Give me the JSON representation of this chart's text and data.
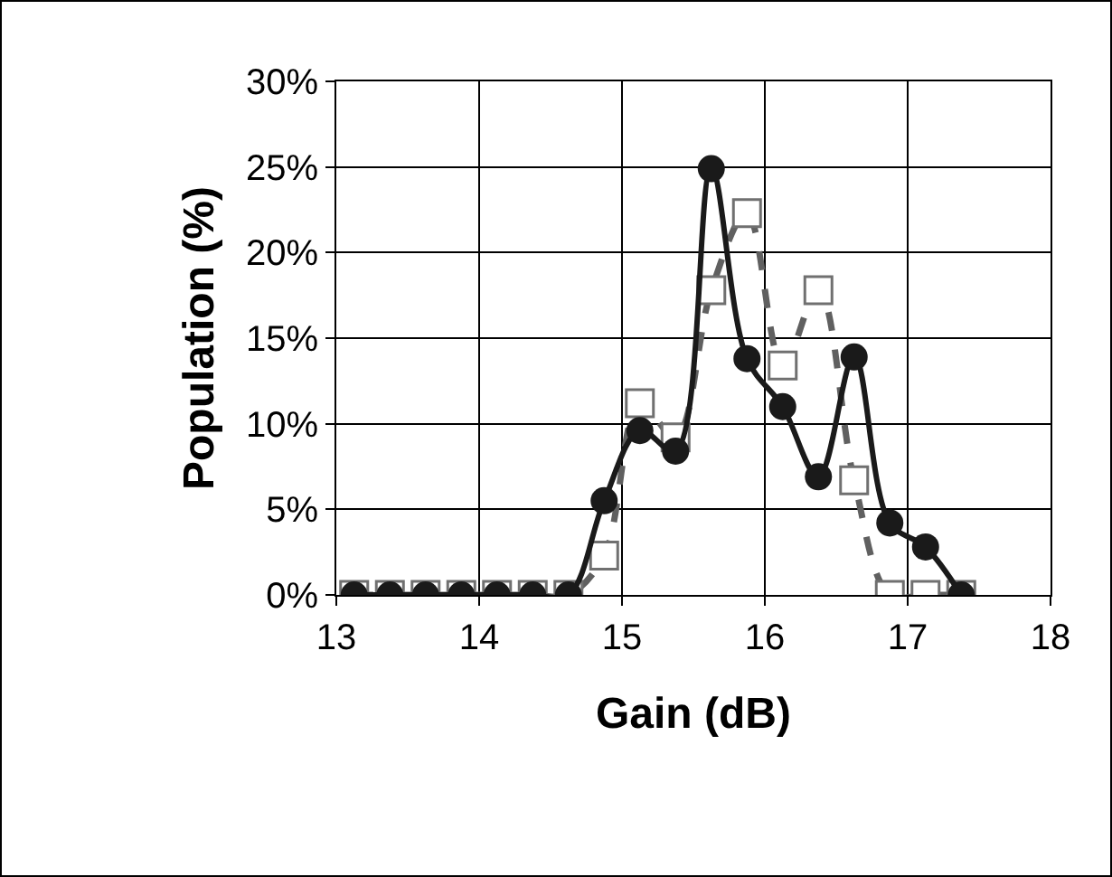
{
  "chart_data": {
    "type": "line",
    "xlabel": "Gain (dB)",
    "ylabel": "Population (%)",
    "x": [
      13.125,
      13.375,
      13.625,
      13.875,
      14.125,
      14.375,
      14.625,
      14.875,
      15.125,
      15.375,
      15.625,
      15.875,
      16.125,
      16.375,
      16.625,
      16.875,
      17.125,
      17.375
    ],
    "series": [
      {
        "color": "#1a1a1a",
        "marker": "circle",
        "line_style": "solid",
        "values": [
          0,
          0,
          0,
          0,
          0,
          0,
          0,
          5.5,
          9.6,
          8.4,
          24.9,
          13.8,
          11.0,
          6.9,
          13.9,
          4.2,
          2.8,
          0
        ]
      },
      {
        "color": "#606060",
        "marker": "square",
        "line_style": "dashed",
        "values": [
          0,
          0,
          0,
          0,
          0,
          0,
          0,
          2.3,
          11.2,
          9.2,
          17.8,
          22.3,
          13.4,
          17.8,
          6.7,
          0,
          0,
          0
        ]
      }
    ],
    "xlim": [
      13,
      18
    ],
    "xticks": [
      13,
      14,
      15,
      16,
      17,
      18
    ],
    "ylim": [
      0,
      30
    ],
    "yticks": [
      {
        "value": 0,
        "label": "0%"
      },
      {
        "value": 5,
        "label": "5%"
      },
      {
        "value": 10,
        "label": "10%"
      },
      {
        "value": 15,
        "label": "15%"
      },
      {
        "value": 20,
        "label": "20%"
      },
      {
        "value": 25,
        "label": "25%"
      },
      {
        "value": 30,
        "label": "30%"
      }
    ],
    "grid": true
  }
}
